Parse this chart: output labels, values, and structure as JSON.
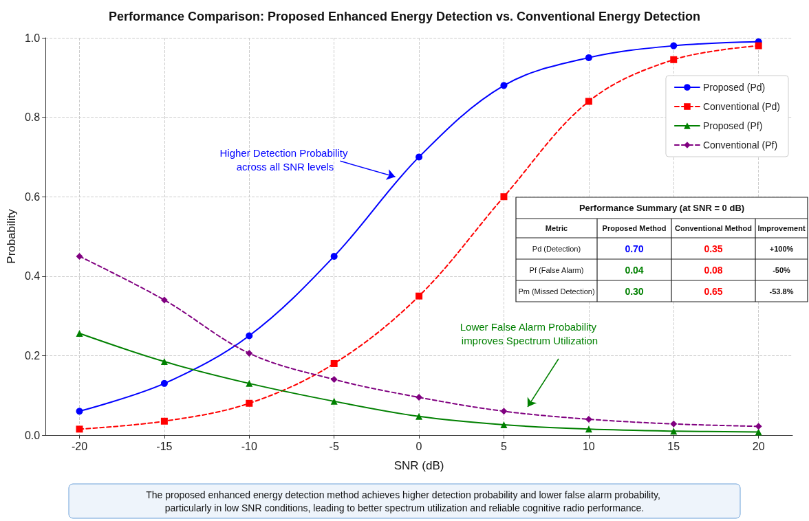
{
  "chart_data": {
    "type": "line",
    "title": "Performance Comparison: Proposed Enhanced Energy Detection vs. Conventional Energy Detection",
    "xlabel": "SNR (dB)",
    "ylabel": "Probability",
    "x": [
      -20,
      -15,
      -10,
      -5,
      0,
      5,
      10,
      15,
      20
    ],
    "series": [
      {
        "name": "Proposed (Pd)",
        "color": "#0000ff",
        "marker": "circle",
        "line_style": "solid",
        "values": [
          0.06,
          0.13,
          0.25,
          0.45,
          0.7,
          0.88,
          0.95,
          0.98,
          0.99
        ]
      },
      {
        "name": "Conventional (Pd)",
        "color": "#ff0000",
        "marker": "square",
        "line_style": "dashed",
        "values": [
          0.015,
          0.035,
          0.08,
          0.18,
          0.35,
          0.6,
          0.84,
          0.945,
          0.98
        ]
      },
      {
        "name": "Proposed (Pf)",
        "color": "#008000",
        "marker": "triangle",
        "line_style": "solid",
        "values": [
          0.256,
          0.185,
          0.13,
          0.085,
          0.047,
          0.026,
          0.015,
          0.01,
          0.008
        ]
      },
      {
        "name": "Conventional (Pf)",
        "color": "#800080",
        "marker": "diamond",
        "line_style": "dashed",
        "values": [
          0.45,
          0.34,
          0.206,
          0.14,
          0.095,
          0.06,
          0.04,
          0.028,
          0.022
        ]
      }
    ],
    "xlim": [
      -22,
      22
    ],
    "xticks": [
      -20,
      -15,
      -10,
      -5,
      0,
      5,
      10,
      15,
      20
    ],
    "ylim": [
      0,
      1
    ],
    "yticks": [
      {
        "value": 0,
        "label": "0.0"
      },
      0.2,
      0.4,
      0.6,
      0.8,
      {
        "value": 1,
        "label": "1.0"
      }
    ],
    "grid": true,
    "legend": "top right",
    "annotations": [
      {
        "text": "Higher Detection Probability across all SNR levels",
        "x": -1.4,
        "y": 0.65
      },
      "Lower False Alarm Probability improves Spectrum Utilization",
      "The proposed enhanced energy detection method achieves higher detection probability and lower false alarm probability, particularly in low SNR conditions, leading to better spectrum utilization and reliable cognitive radio performance.",
      "Performance Summary (at SNR = 0 dB)",
      "Metric",
      "Proposed Method",
      "Conventional Method",
      "Improvement",
      "Pd (Detection)",
      "0.70",
      "0.35",
      "+100%",
      "Pf (False Alarm)",
      "0.04",
      "0.08",
      "-50%",
      "Pm (Missed Detection)",
      "0.30",
      "0.65",
      "-53.8%"
    ]
  }
}
